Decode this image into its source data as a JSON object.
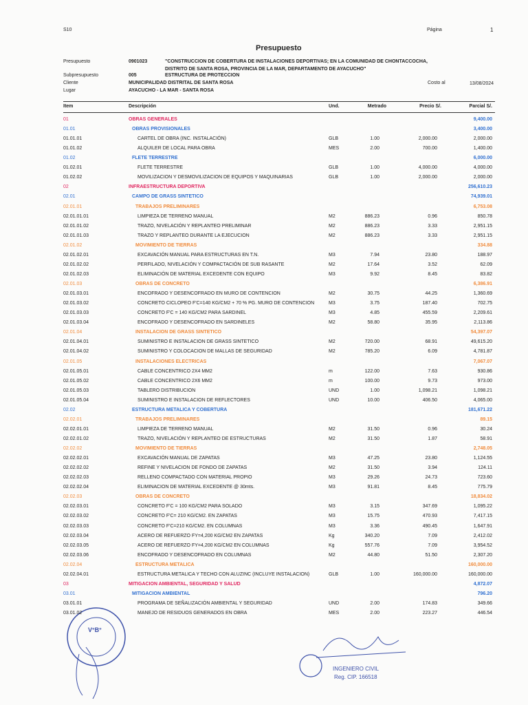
{
  "header": {
    "software": "S10",
    "page_label": "Página",
    "page_number": "1",
    "title": "Presupuesto"
  },
  "meta": {
    "presupuesto_label": "Presupuesto",
    "presupuesto_code": "0901023",
    "project_lines": [
      "\"CONSTRUCCION DE COBERTURA DE INSTALACIONES DEPORTIVAS; EN LA COMUNIDAD DE CHONTACCOCHA,",
      "DISTRITO DE SANTA ROSA, PROVINCIA DE LA MAR, DEPARTAMENTO DE AYACUCHO\""
    ],
    "sub_label": "Subpresupuesto",
    "sub_code": "005",
    "sub_name": "ESTRUCTURA DE PROTECCION",
    "cliente_label": "Cliente",
    "cliente": "MUNICIPALIDAD DISTRITAL DE SANTA ROSA",
    "costo_label": "Costo al",
    "costo_date": "13/08/2024",
    "lugar_label": "Lugar",
    "lugar": "AYACUCHO - LA MAR - SANTA ROSA"
  },
  "table": {
    "columns": [
      "Item",
      "Descripción",
      "Und.",
      "Metrado",
      "Precio S/.",
      "Parcial S/."
    ],
    "rows": [
      {
        "item": "01",
        "desc": "OBRAS GENERALES",
        "parcial": "9,400.00"
      },
      {
        "item": "01.01",
        "desc": "OBRAS PROVISIONALES",
        "parcial": "3,400.00"
      },
      {
        "item": "01.01.01",
        "desc": "CARTEL DE OBRA (INC. INSTALACIÓN)",
        "und": "GLB",
        "metrado": "1.00",
        "precio": "2,000.00",
        "parcial": "2,000.00"
      },
      {
        "item": "01.01.02",
        "desc": "ALQUILER DE LOCAL PARA OBRA",
        "und": "MES",
        "metrado": "2.00",
        "precio": "700.00",
        "parcial": "1,400.00"
      },
      {
        "item": "01.02",
        "desc": "FLETE TERRESTRE",
        "parcial": "6,000.00"
      },
      {
        "item": "01.02.01",
        "desc": "FLETE TERRESTRE",
        "und": "GLB",
        "metrado": "1.00",
        "precio": "4,000.00",
        "parcial": "4,000.00"
      },
      {
        "item": "01.02.02",
        "desc": "MOVILIZACION Y DESMOVILIZACION DE EQUIPOS Y MAQUINARIAS",
        "und": "GLB",
        "metrado": "1.00",
        "precio": "2,000.00",
        "parcial": "2,000.00"
      },
      {
        "item": "02",
        "desc": "INFRAESTRUCTURA DEPORTIVA",
        "parcial": "256,610.23"
      },
      {
        "item": "02.01",
        "desc": "CAMPO DE GRASS SINTETICO",
        "parcial": "74,939.01"
      },
      {
        "item": "02.01.01",
        "desc": "TRABAJOS PRELIMINARES",
        "parcial": "6,753.08"
      },
      {
        "item": "02.01.01.01",
        "desc": "LIMPIEZA DE TERRENO MANUAL",
        "und": "M2",
        "metrado": "886.23",
        "precio": "0.96",
        "parcial": "850.78"
      },
      {
        "item": "02.01.01.02",
        "desc": "TRAZO, NIVELACIÓN Y REPLANTEO PRELIMINAR",
        "und": "M2",
        "metrado": "886.23",
        "precio": "3.33",
        "parcial": "2,951.15"
      },
      {
        "item": "02.01.01.03",
        "desc": "TRAZO Y REPLANTEO DURANTE LA EJECUCION",
        "und": "M2",
        "metrado": "886.23",
        "precio": "3.33",
        "parcial": "2,951.15"
      },
      {
        "item": "02.01.02",
        "desc": "MOVIMIENTO DE TIERRAS",
        "parcial": "334.88"
      },
      {
        "item": "02.01.02.01",
        "desc": "EXCAVACIÓN MANUAL PARA ESTRUCTURAS EN T.N.",
        "und": "M3",
        "metrado": "7.94",
        "precio": "23.80",
        "parcial": "188.97"
      },
      {
        "item": "02.01.02.02",
        "desc": "PERFILADO, NIVELACIÓN Y COMPACTACIÓN DE SUB RASANTE",
        "und": "M2",
        "metrado": "17.64",
        "precio": "3.52",
        "parcial": "62.09"
      },
      {
        "item": "02.01.02.03",
        "desc": "ELIMINACIÓN DE MATERIAL EXCEDENTE CON EQUIPO",
        "und": "M3",
        "metrado": "9.92",
        "precio": "8.45",
        "parcial": "83.82"
      },
      {
        "item": "02.01.03",
        "desc": "OBRAS DE CONCRETO",
        "parcial": "6,386.91"
      },
      {
        "item": "02.01.03.01",
        "desc": "ENCOFRADO Y DESENCOFRADO EN MURO DE CONTENCION",
        "und": "M2",
        "metrado": "30.75",
        "precio": "44.25",
        "parcial": "1,360.69"
      },
      {
        "item": "02.01.03.02",
        "desc": "CONCRETO CICLOPEO F'C=140 KG/CM2 + 70 % PG. MURO DE CONTENCION",
        "und": "M3",
        "metrado": "3.75",
        "precio": "187.40",
        "parcial": "702.75"
      },
      {
        "item": "02.01.03.03",
        "desc": "CONCRETO F'C = 140 KG/CM2 PARA SARDINEL",
        "und": "M3",
        "metrado": "4.85",
        "precio": "455.59",
        "parcial": "2,209.61"
      },
      {
        "item": "02.01.03.04",
        "desc": "ENCOFRADO Y DESENCOFRADO EN SARDINELES",
        "und": "M2",
        "metrado": "58.80",
        "precio": "35.95",
        "parcial": "2,113.86"
      },
      {
        "item": "02.01.04",
        "desc": "INSTALACION DE GRASS SINTETICO",
        "parcial": "54,397.07"
      },
      {
        "item": "02.01.04.01",
        "desc": "SUMINISTRO E INSTALACION DE GRASS SINTETICO",
        "und": "M2",
        "metrado": "720.00",
        "precio": "68.91",
        "parcial": "49,615.20"
      },
      {
        "item": "02.01.04.02",
        "desc": "SUMINISTRO Y COLOCACION DE MALLAS DE SEGURIDAD",
        "und": "M2",
        "metrado": "785.20",
        "precio": "6.09",
        "parcial": "4,781.87"
      },
      {
        "item": "02.01.05",
        "desc": "INSTALACIONES ELECTRICAS",
        "parcial": "7,067.07"
      },
      {
        "item": "02.01.05.01",
        "desc": "CABLE CONCENTRICO 2X4 MM2",
        "und": "m",
        "metrado": "122.00",
        "precio": "7.63",
        "parcial": "930.86"
      },
      {
        "item": "02.01.05.02",
        "desc": "CABLE CONCENTRICO 2X6 MM2",
        "und": "m",
        "metrado": "100.00",
        "precio": "9.73",
        "parcial": "973.00"
      },
      {
        "item": "02.01.05.03",
        "desc": "TABLERO DISTRIBUCION",
        "und": "UND",
        "metrado": "1.00",
        "precio": "1,098.21",
        "parcial": "1,098.21"
      },
      {
        "item": "02.01.05.04",
        "desc": "SUMINISTRO E INSTALACION DE REFLECTORES",
        "und": "UND",
        "metrado": "10.00",
        "precio": "406.50",
        "parcial": "4,065.00"
      },
      {
        "item": "02.02",
        "desc": "ESTRUCTURA METALICA Y COBERTURA",
        "parcial": "181,671.22"
      },
      {
        "item": "02.02.01",
        "desc": "TRABAJOS PRELIMINARES",
        "parcial": "89.15"
      },
      {
        "item": "02.02.01.01",
        "desc": "LIMPIEZA DE TERRENO MANUAL",
        "und": "M2",
        "metrado": "31.50",
        "precio": "0.96",
        "parcial": "30.24"
      },
      {
        "item": "02.02.01.02",
        "desc": "TRAZO, NIVELACIÓN Y REPLANTEO DE ESTRUCTURAS",
        "und": "M2",
        "metrado": "31.50",
        "precio": "1.87",
        "parcial": "58.91"
      },
      {
        "item": "02.02.02",
        "desc": "MOVIMIENTO DE TIERRAS",
        "parcial": "2,748.05"
      },
      {
        "item": "02.02.02.01",
        "desc": "EXCAVACIÓN MANUAL DE ZAPATAS",
        "und": "M3",
        "metrado": "47.25",
        "precio": "23.80",
        "parcial": "1,124.55"
      },
      {
        "item": "02.02.02.02",
        "desc": "REFINE Y NIVELACION DE FONDO DE ZAPATAS",
        "und": "M2",
        "metrado": "31.50",
        "precio": "3.94",
        "parcial": "124.11"
      },
      {
        "item": "02.02.02.03",
        "desc": "RELLENO COMPACTADO CON MATERIAL PROPIO",
        "und": "M3",
        "metrado": "29.26",
        "precio": "24.73",
        "parcial": "723.60"
      },
      {
        "item": "02.02.02.04",
        "desc": "ELIMINACION DE MATERIAL EXCEDENTE @ 30mts.",
        "und": "M3",
        "metrado": "91.81",
        "precio": "8.45",
        "parcial": "775.79"
      },
      {
        "item": "02.02.03",
        "desc": "OBRAS DE CONCRETO",
        "parcial": "18,834.02"
      },
      {
        "item": "02.02.03.01",
        "desc": "CONCRETO F'C = 100 KG/CM2 PARA SOLADO",
        "und": "M3",
        "metrado": "3.15",
        "precio": "347.69",
        "parcial": "1,095.22"
      },
      {
        "item": "02.02.03.02",
        "desc": "CONCRETO F'C= 210 KG/CM2. EN ZAPATAS",
        "und": "M3",
        "metrado": "15.75",
        "precio": "470.93",
        "parcial": "7,417.15"
      },
      {
        "item": "02.02.03.03",
        "desc": "CONCRETO F'C=210 KG/CM2. EN COLUMNAS",
        "und": "M3",
        "metrado": "3.36",
        "precio": "490.45",
        "parcial": "1,647.91"
      },
      {
        "item": "02.02.03.04",
        "desc": "ACERO DE REFUERZO FY=4,200 KG/CM2 EN ZAPATAS",
        "und": "Kg",
        "metrado": "340.20",
        "precio": "7.09",
        "parcial": "2,412.02"
      },
      {
        "item": "02.02.03.05",
        "desc": "ACERO DE REFUERZO FY=4,200 KG/CM2 EN COLUMNAS",
        "und": "Kg",
        "metrado": "557.76",
        "precio": "7.09",
        "parcial": "3,954.52"
      },
      {
        "item": "02.02.03.06",
        "desc": "ENCOFRADO Y DESENCOFRADO EN COLUMNAS",
        "und": "M2",
        "metrado": "44.80",
        "precio": "51.50",
        "parcial": "2,307.20"
      },
      {
        "item": "02.02.04",
        "desc": "ESTRUCTURA METALICA",
        "parcial": "160,000.00"
      },
      {
        "item": "02.02.04.01",
        "desc": "ESTRUCTURA METALICA Y TECHO CON ALUZINC (INCLUYE INSTALACION)",
        "und": "GLB",
        "metrado": "1.00",
        "precio": "160,000.00",
        "parcial": "160,000.00"
      },
      {
        "item": "03",
        "desc": "MITIGACION AMBIENTAL, SEGURIDAD Y SALUD",
        "parcial": "4,872.07"
      },
      {
        "item": "03.01",
        "desc": "MITIGACION AMBIENTAL",
        "parcial": "796.20"
      },
      {
        "item": "03.01.01",
        "desc": "PROGRAMA DE SEÑALIZACIÓN AMBIENTAL Y SEGURIDAD",
        "und": "UND",
        "metrado": "2.00",
        "precio": "174.83",
        "parcial": "349.66"
      },
      {
        "item": "03.01.02",
        "desc": "MANEJO DE RESIDUOS GENERADOS EN OBRA",
        "und": "MES",
        "metrado": "2.00",
        "precio": "223.27",
        "parcial": "446.54"
      }
    ]
  },
  "stamps": {
    "vobo": "V°B°",
    "engineer_title": "INGENIERO CIVIL",
    "engineer_reg": "Reg. CIP. 166518"
  }
}
